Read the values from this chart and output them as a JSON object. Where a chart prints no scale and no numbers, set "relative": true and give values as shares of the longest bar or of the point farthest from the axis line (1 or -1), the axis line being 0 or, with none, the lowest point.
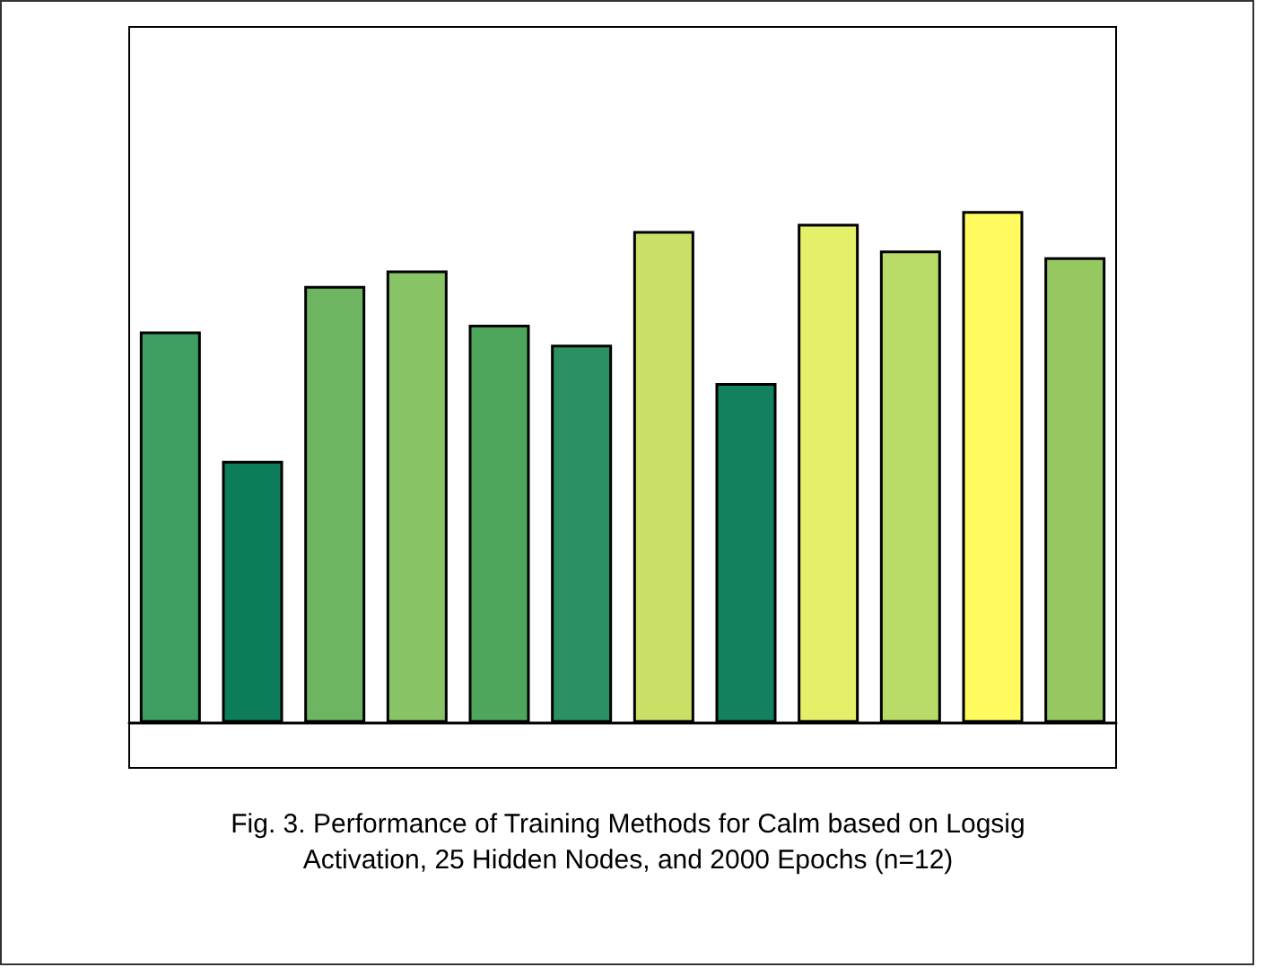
{
  "chart_data": {
    "type": "bar",
    "relative": true,
    "categories": [
      null,
      null,
      null,
      null,
      null,
      null,
      null,
      null,
      null,
      null,
      null,
      null
    ],
    "values": [
      0.765,
      0.512,
      0.854,
      0.884,
      0.778,
      0.739,
      0.961,
      0.664,
      0.975,
      0.923,
      1,
      0.91
    ],
    "colors": [
      "#3f9f62",
      "#0d7c5a",
      "#6db560",
      "#88c466",
      "#4ea65c",
      "#2b9162",
      "#c8e066",
      "#138060",
      "#e4ef6a",
      "#b8da66",
      "#fffb5e",
      "#96c862"
    ],
    "annotations": [
      "Fig. 3. Performance of Training Methods for Calm based on Logsig Activation, 25 Hidden Nodes, and 2000 Epochs (n=12)"
    ],
    "grid": false
  }
}
